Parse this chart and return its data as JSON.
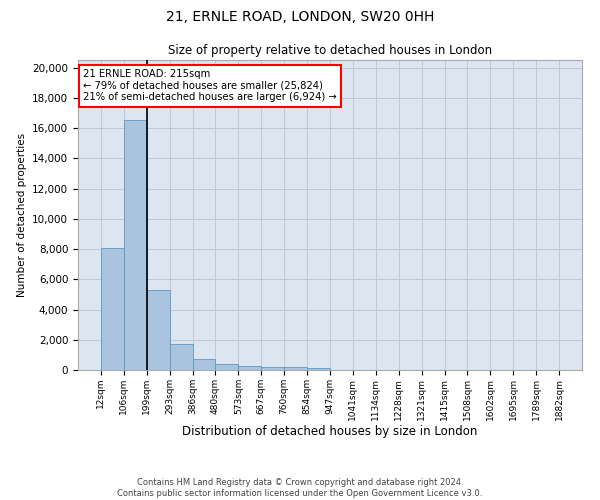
{
  "title1": "21, ERNLE ROAD, LONDON, SW20 0HH",
  "title2": "Size of property relative to detached houses in London",
  "xlabel": "Distribution of detached houses by size in London",
  "ylabel": "Number of detached properties",
  "annotation_title": "21 ERNLE ROAD: 215sqm",
  "annotation_line1": "← 79% of detached houses are smaller (25,824)",
  "annotation_line2": "21% of semi-detached houses are larger (6,924) →",
  "footer1": "Contains HM Land Registry data © Crown copyright and database right 2024.",
  "footer2": "Contains public sector information licensed under the Open Government Licence v3.0.",
  "bar_heights": [
    8100,
    16500,
    5300,
    1750,
    700,
    380,
    290,
    230,
    185,
    130,
    0,
    0,
    0,
    0,
    0,
    0,
    0,
    0,
    0,
    0
  ],
  "categories": [
    "12sqm",
    "106sqm",
    "199sqm",
    "293sqm",
    "386sqm",
    "480sqm",
    "573sqm",
    "667sqm",
    "760sqm",
    "854sqm",
    "947sqm",
    "1041sqm",
    "1134sqm",
    "1228sqm",
    "1321sqm",
    "1415sqm",
    "1508sqm",
    "1602sqm",
    "1695sqm",
    "1789sqm",
    "1882sqm"
  ],
  "property_bin_index": 2,
  "bar_color": "#aac4e0",
  "bar_edge_color": "#5a9bc0",
  "vline_color": "black",
  "grid_color": "#c0c8d8",
  "bg_color": "#dce6f0",
  "ylim": [
    0,
    20500
  ],
  "yticks": [
    0,
    2000,
    4000,
    6000,
    8000,
    10000,
    12000,
    14000,
    16000,
    18000,
    20000
  ]
}
